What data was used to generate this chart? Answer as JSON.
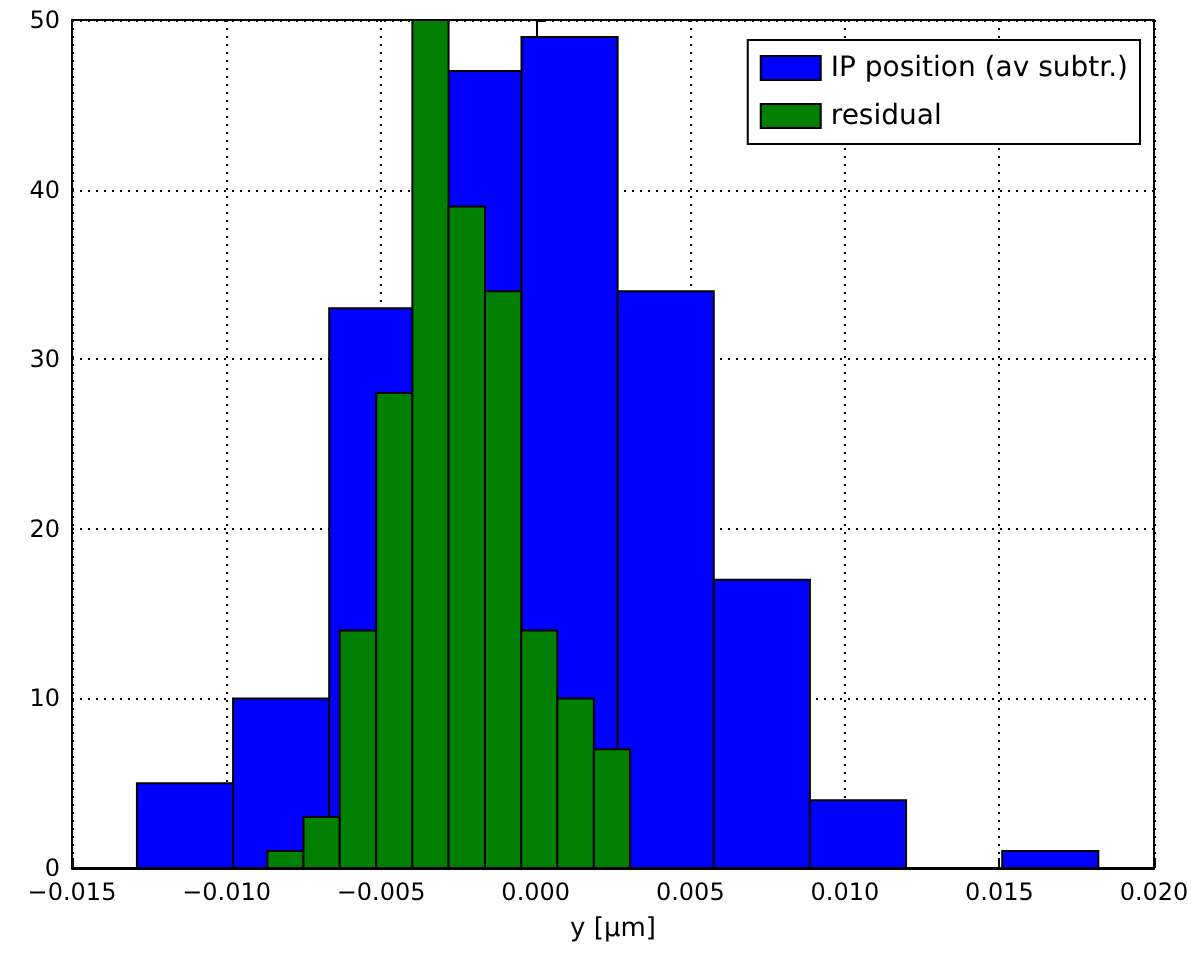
{
  "chart_data": {
    "type": "histogram",
    "xlabel": "y [μm]",
    "bins": [
      -0.0129,
      -0.00979,
      -0.00668,
      -0.00357,
      -0.00046,
      0.00265,
      0.00576,
      0.00887,
      0.01198,
      0.01509,
      0.0182
    ],
    "series": [
      {
        "name": "IP position (av subtr.)",
        "color": "#0000ff",
        "values": [
          5,
          10,
          33,
          47,
          49,
          34,
          17,
          4,
          0,
          1
        ]
      },
      {
        "name": "residual",
        "color": "#008000",
        "bins": [
          -0.00868,
          -0.00751,
          -0.00634,
          -0.00516,
          -0.00399,
          -0.00282,
          -0.00164,
          -0.00047,
          0.0007,
          0.00188,
          0.00305
        ],
        "values": [
          1,
          3,
          14,
          28,
          50,
          39,
          34,
          14,
          10,
          7
        ]
      }
    ],
    "xlim": [
      -0.015,
      0.02
    ],
    "xticks": [
      {
        "value": -0.015,
        "label": "−0.015"
      },
      {
        "value": -0.01,
        "label": "−0.010"
      },
      {
        "value": -0.005,
        "label": "−0.005"
      },
      {
        "value": 0,
        "label": "0.000"
      },
      {
        "value": 0.005,
        "label": "0.005"
      },
      {
        "value": 0.01,
        "label": "0.010"
      },
      {
        "value": 0.015,
        "label": "0.015"
      },
      {
        "value": 0.02,
        "label": "0.020"
      }
    ],
    "ylim": [
      0,
      50
    ],
    "yticks": [
      0,
      10,
      20,
      30,
      40,
      50
    ],
    "grid": true,
    "legend": "top right"
  }
}
